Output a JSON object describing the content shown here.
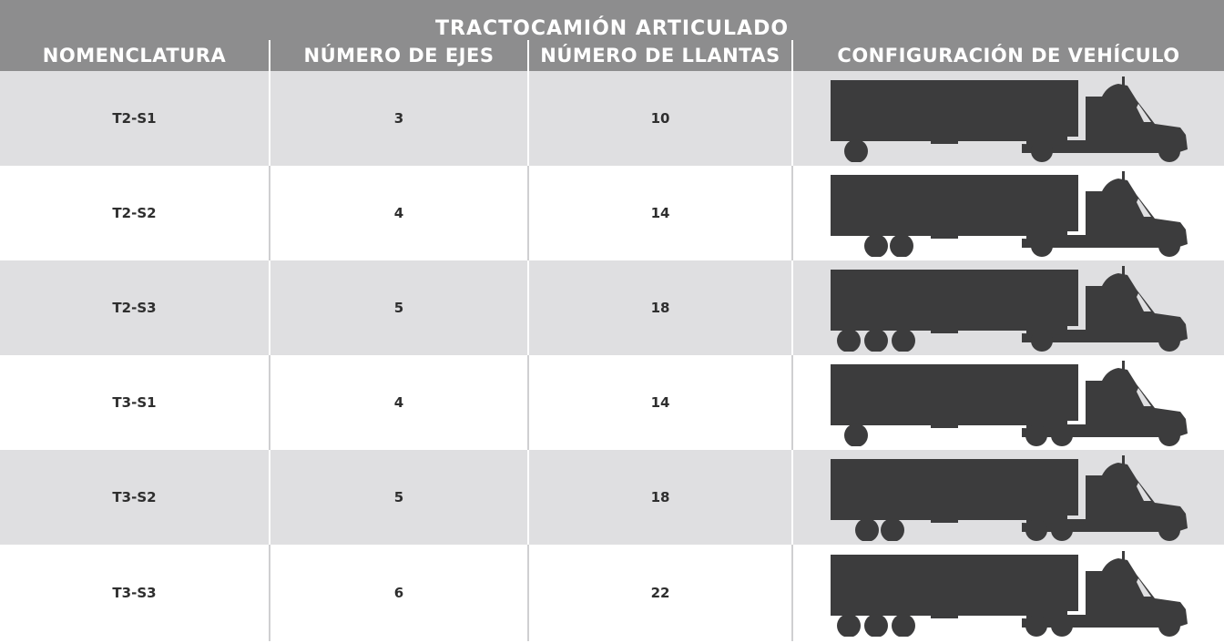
{
  "header": {
    "title": "TRACTOCAMIÓN ARTICULADO"
  },
  "table": {
    "columns": [
      "NOMENCLATURA",
      "NÚMERO DE EJES",
      "NÚMERO DE LLANTAS",
      "CONFIGURACIÓN DE VEHÍCULO"
    ],
    "rows": [
      [
        "T2-S1",
        3,
        10
      ],
      [
        "T2-S2",
        4,
        14
      ],
      [
        "T2-S3",
        5,
        18
      ],
      [
        "T3-S1",
        4,
        14
      ],
      [
        "T3-S2",
        5,
        18
      ],
      [
        "T3-S3",
        6,
        22
      ]
    ]
  }
}
